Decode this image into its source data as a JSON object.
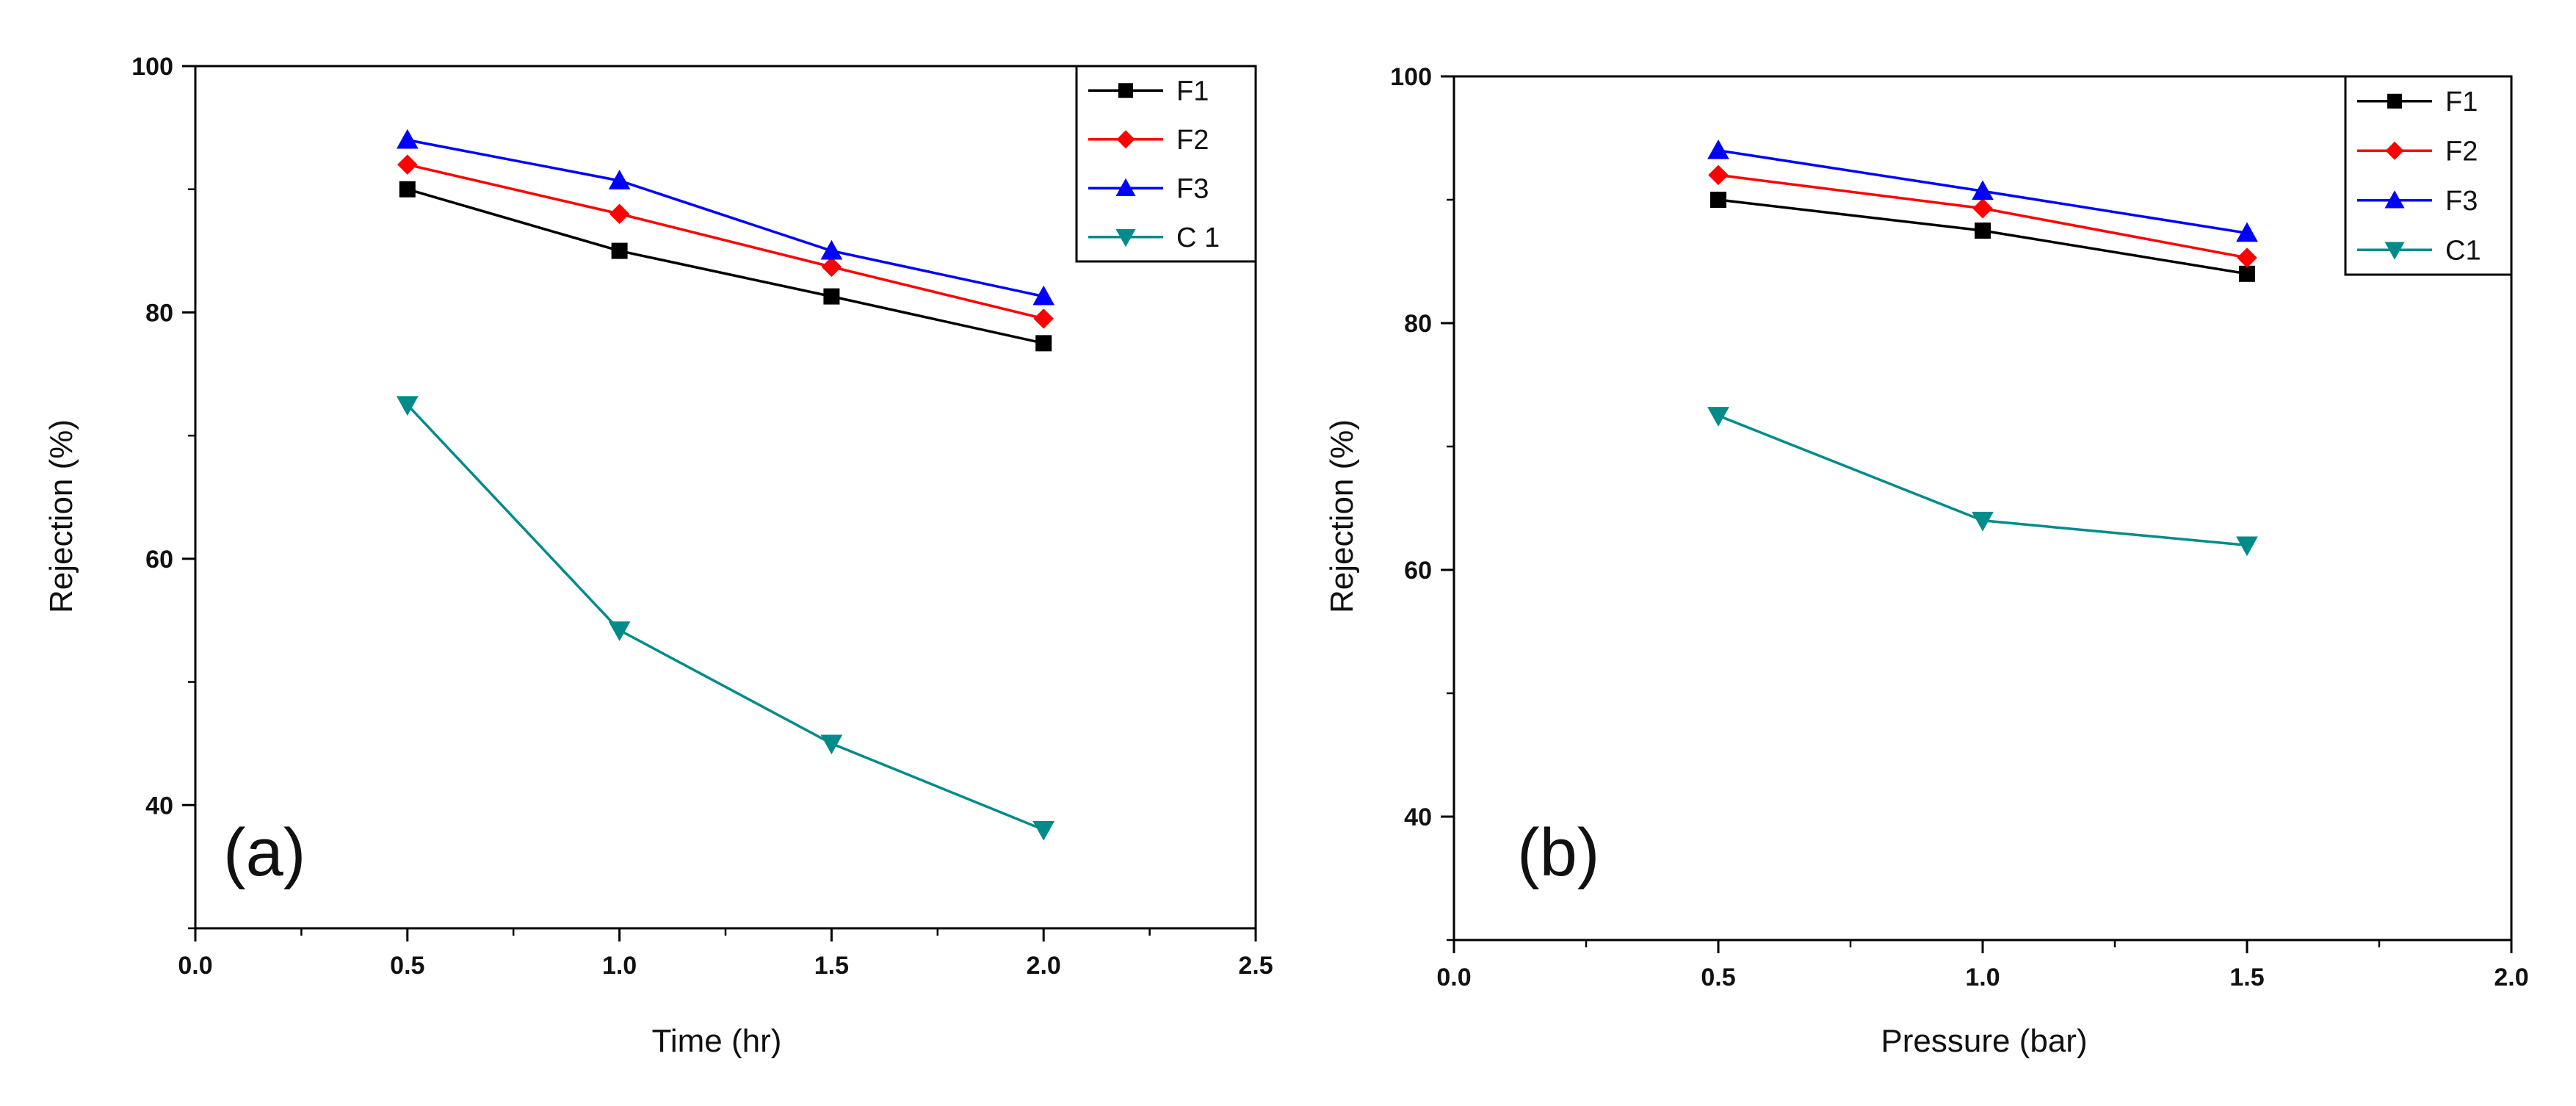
{
  "chart_data": [
    {
      "type": "line",
      "panel_label": "(a)",
      "xlabel": "Time (hr)",
      "ylabel": "Rejection (%)",
      "xlim": [
        0.0,
        2.5
      ],
      "ylim": [
        30,
        100
      ],
      "xticks": [
        0.0,
        0.5,
        1.0,
        1.5,
        2.0,
        2.5
      ],
      "xtick_labels": [
        "0.0",
        "0.5",
        "1.0",
        "1.5",
        "2.0",
        "2.5"
      ],
      "yticks": [
        40,
        60,
        80,
        100
      ],
      "ytick_labels": [
        "40",
        "60",
        "80",
        "100"
      ],
      "legend_position": "top-right",
      "x": [
        0.5,
        1.0,
        1.5,
        2.0
      ],
      "series": [
        {
          "name": "F1",
          "color": "#000000",
          "marker": "square",
          "values": [
            90.0,
            85.0,
            81.3,
            77.5
          ]
        },
        {
          "name": "F2",
          "color": "#ff0000",
          "marker": "diamond",
          "values": [
            92.0,
            88.0,
            83.7,
            79.5
          ]
        },
        {
          "name": "F3",
          "color": "#0000ff",
          "marker": "triangle-up",
          "values": [
            94.0,
            90.7,
            85.0,
            81.3
          ]
        },
        {
          "name": "C 1",
          "color": "#008b8b",
          "marker": "triangle-down",
          "values": [
            72.5,
            54.2,
            45.0,
            38.0
          ]
        }
      ]
    },
    {
      "type": "line",
      "panel_label": "(b)",
      "xlabel": "Pressure (bar)",
      "ylabel": "Rejection (%)",
      "xlim": [
        0.0,
        2.0
      ],
      "ylim": [
        30,
        100
      ],
      "xticks": [
        0.0,
        0.5,
        1.0,
        1.5,
        2.0
      ],
      "xtick_labels": [
        "0.0",
        "0.5",
        "1.0",
        "1.5",
        "2.0"
      ],
      "yticks": [
        40,
        60,
        80,
        100
      ],
      "ytick_labels": [
        "40",
        "60",
        "80",
        "100"
      ],
      "legend_position": "top-right",
      "x": [
        0.5,
        1.0,
        1.5
      ],
      "series": [
        {
          "name": "F1",
          "color": "#000000",
          "marker": "square",
          "values": [
            90.0,
            87.5,
            84.0
          ]
        },
        {
          "name": "F2",
          "color": "#ff0000",
          "marker": "diamond",
          "values": [
            92.0,
            89.3,
            85.3
          ]
        },
        {
          "name": "F3",
          "color": "#0000ff",
          "marker": "triangle-up",
          "values": [
            94.0,
            90.7,
            87.3
          ]
        },
        {
          "name": "C1",
          "color": "#008b8b",
          "marker": "triangle-down",
          "values": [
            72.5,
            64.0,
            62.0
          ]
        }
      ]
    }
  ]
}
